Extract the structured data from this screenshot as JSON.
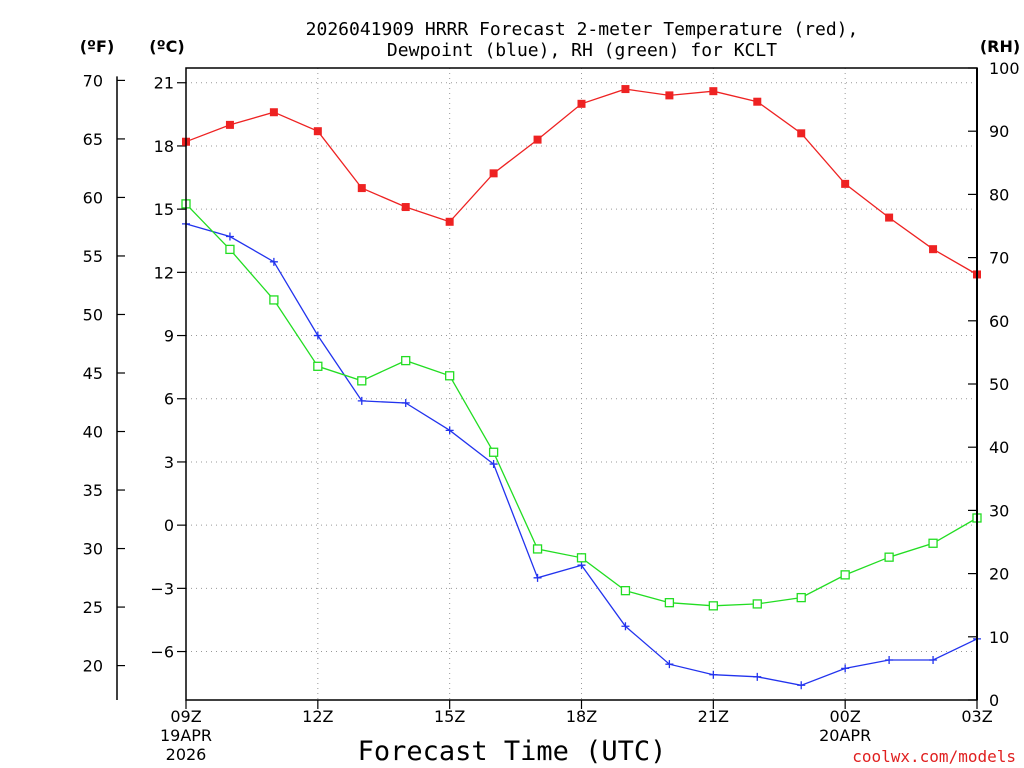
{
  "chart_data": {
    "type": "line",
    "title_line1": "2026041909 HRRR Forecast 2-meter Temperature (red),",
    "title_line2": "Dewpoint (blue), RH (green) for KCLT",
    "xlabel": "Forecast Time (UTC)",
    "credit": "coolwx.com/models",
    "left_outer_unit": "(ºF)",
    "left_inner_unit": "(ºC)",
    "right_unit": "(RH)",
    "x_hours": [
      0,
      1,
      2,
      3,
      4,
      5,
      6,
      7,
      8,
      9,
      10,
      11,
      12,
      13,
      14,
      15,
      16,
      17,
      18
    ],
    "x_ticks": [
      {
        "hour": 0,
        "label": "09Z",
        "sub1": "19APR",
        "sub2": "2026"
      },
      {
        "hour": 3,
        "label": "12Z",
        "sub1": "",
        "sub2": ""
      },
      {
        "hour": 6,
        "label": "15Z",
        "sub1": "",
        "sub2": ""
      },
      {
        "hour": 9,
        "label": "18Z",
        "sub1": "",
        "sub2": ""
      },
      {
        "hour": 12,
        "label": "21Z",
        "sub1": "",
        "sub2": ""
      },
      {
        "hour": 15,
        "label": "00Z",
        "sub1": "20APR",
        "sub2": ""
      },
      {
        "hour": 18,
        "label": "03Z",
        "sub1": "",
        "sub2": ""
      }
    ],
    "celsius_axis": {
      "min": -8.3,
      "max": 21.7,
      "ticks": [
        21,
        18,
        15,
        12,
        9,
        6,
        3,
        0,
        -3,
        -6
      ],
      "tick_labels": [
        "21",
        "18",
        "15",
        "12",
        "9",
        "6",
        "3",
        "0",
        "−3",
        "−6"
      ]
    },
    "fahrenheit_ticks": [
      {
        "value": 70,
        "label": "70"
      },
      {
        "value": 65,
        "label": "65"
      },
      {
        "value": 60,
        "label": "60"
      },
      {
        "value": 55,
        "label": "55"
      },
      {
        "value": 50,
        "label": "50"
      },
      {
        "value": 45,
        "label": "45"
      },
      {
        "value": 40,
        "label": "40"
      },
      {
        "value": 35,
        "label": "35"
      },
      {
        "value": 30,
        "label": "30"
      },
      {
        "value": 25,
        "label": "25"
      },
      {
        "value": 20,
        "label": "20"
      }
    ],
    "rh_axis": {
      "min": 0,
      "max": 100,
      "ticks": [
        0,
        10,
        20,
        30,
        40,
        50,
        60,
        70,
        80,
        90,
        100
      ]
    },
    "series": [
      {
        "name": "Temperature",
        "unit": "C",
        "color": "#ee2222",
        "marker": "filled-square",
        "values": [
          18.2,
          19.0,
          19.6,
          18.7,
          16.0,
          15.1,
          14.4,
          16.7,
          18.3,
          20.0,
          20.7,
          20.4,
          20.6,
          20.1,
          18.6,
          16.2,
          14.6,
          13.1,
          11.9
        ]
      },
      {
        "name": "Dewpoint",
        "unit": "C",
        "color": "#2233ee",
        "marker": "plus",
        "values": [
          14.3,
          13.7,
          12.5,
          9.0,
          5.9,
          5.8,
          4.5,
          2.9,
          -2.5,
          -1.9,
          -4.8,
          -6.6,
          -7.1,
          -7.2,
          -7.6,
          -6.8,
          -6.4,
          -6.4,
          -5.4
        ]
      },
      {
        "name": "RH",
        "unit": "%",
        "color": "#22dd22",
        "marker": "open-square",
        "values": [
          78.5,
          71.3,
          63.3,
          52.8,
          50.5,
          53.7,
          51.3,
          39.2,
          23.9,
          22.5,
          17.3,
          15.4,
          14.9,
          15.2,
          16.2,
          19.8,
          22.6,
          24.8,
          28.8
        ]
      }
    ]
  }
}
